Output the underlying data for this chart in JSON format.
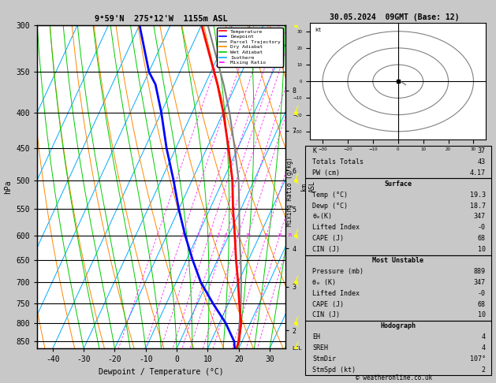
{
  "title_left": "9°59'N  275°12'W  1155m ASL",
  "title_right": "30.05.2024  09GMT (Base: 12)",
  "xlabel": "Dewpoint / Temperature (°C)",
  "ylabel_left": "hPa",
  "pressure_levels": [
    300,
    350,
    400,
    450,
    500,
    550,
    600,
    650,
    700,
    750,
    800,
    850
  ],
  "pressure_min": 300,
  "pressure_max": 870,
  "temp_min": -45,
  "temp_max": 35,
  "mixing_ratio_labels": [
    1,
    2,
    3,
    4,
    5,
    6,
    8,
    10,
    15,
    20,
    25
  ],
  "km_ticks": {
    "2": 820,
    "3": 710,
    "4": 626,
    "5": 550,
    "6": 484,
    "7": 425,
    "8": 372
  },
  "lcl_pressure": 870,
  "bg_color": "#ffffff",
  "plot_bg": "#ffffff",
  "isotherm_color": "#00aaff",
  "dry_adiabat_color": "#ff8800",
  "wet_adiabat_color": "#00cc00",
  "mixing_ratio_color": "#ff00ff",
  "temp_color": "#ff0000",
  "dewpoint_color": "#0000ff",
  "parcel_color": "#808080",
  "grid_color": "#000000",
  "legend_items": [
    {
      "label": "Temperature",
      "color": "#ff0000",
      "style": "solid"
    },
    {
      "label": "Dewpoint",
      "color": "#0000ff",
      "style": "solid"
    },
    {
      "label": "Parcel Trajectory",
      "color": "#808080",
      "style": "solid"
    },
    {
      "label": "Dry Adiabat",
      "color": "#ff8800",
      "style": "solid"
    },
    {
      "label": "Wet Adiabat",
      "color": "#00cc00",
      "style": "solid"
    },
    {
      "label": "Isotherm",
      "color": "#00aaff",
      "style": "solid"
    },
    {
      "label": "Mixing Ratio",
      "color": "#ff00ff",
      "style": "dashed"
    }
  ],
  "sounding_pressure": [
    870,
    850,
    800,
    750,
    700,
    650,
    600,
    550,
    500,
    450,
    400,
    365,
    350,
    300
  ],
  "sounding_temp": [
    19.3,
    19.0,
    17.0,
    13.5,
    10.0,
    6.0,
    2.0,
    -2.5,
    -7.0,
    -13.0,
    -20.0,
    -26.0,
    -29.0,
    -40.0
  ],
  "sounding_dewp": [
    18.7,
    17.5,
    12.0,
    5.0,
    -2.0,
    -8.0,
    -14.0,
    -20.0,
    -26.0,
    -33.0,
    -40.0,
    -46.0,
    -50.0,
    -60.0
  ],
  "parcel_temp": [
    19.3,
    18.8,
    16.5,
    14.0,
    11.0,
    7.5,
    3.5,
    -0.5,
    -5.0,
    -11.0,
    -18.0,
    -24.0,
    -27.0,
    -38.0
  ],
  "hodograph_circles": [
    10,
    20,
    30
  ],
  "hodograph_data_u": [
    1.5,
    2.0,
    2.5,
    3.0
  ],
  "hodograph_data_v": [
    -0.5,
    -1.0,
    -1.5,
    -2.0
  ],
  "stats": {
    "K": 37,
    "Totals_Totals": 43,
    "PW_cm": "4.17",
    "Surface_Temp": "19.3",
    "Surface_Dewp": "18.7",
    "Surface_theta_e": 347,
    "Surface_LI": "-0",
    "Surface_CAPE": 68,
    "Surface_CIN": 10,
    "MU_Pressure": 889,
    "MU_theta_e": 347,
    "MU_LI": "-0",
    "MU_CAPE": 68,
    "MU_CIN": 10,
    "EH": 4,
    "SREH": 4,
    "StmDir": "107°",
    "StmSpd": 2
  }
}
